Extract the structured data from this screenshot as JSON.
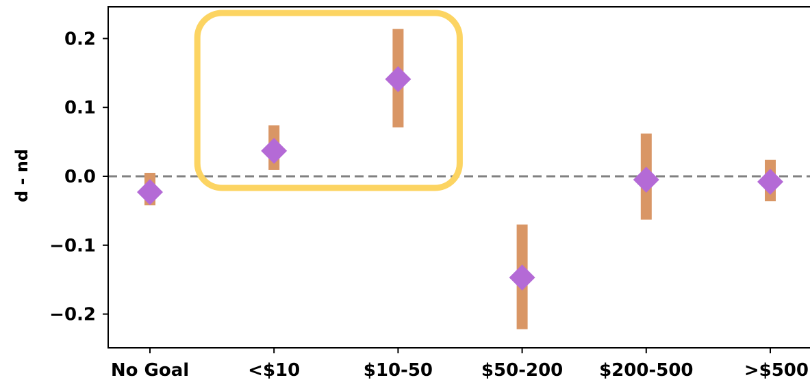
{
  "chart_data": {
    "type": "scatter",
    "title": "",
    "xlabel": "",
    "ylabel": "d - nd",
    "categories": [
      "No Goal",
      "<$10",
      "$10-50",
      "$50-200",
      "$200-500",
      ">$500"
    ],
    "y_ticks": [
      {
        "value": 0.2,
        "label": "0.2"
      },
      {
        "value": 0.1,
        "label": "0.1"
      },
      {
        "value": 0.0,
        "label": "0.0"
      },
      {
        "value": -0.1,
        "label": "−0.1"
      },
      {
        "value": -0.2,
        "label": "−0.2"
      }
    ],
    "ylim": [
      -0.249,
      0.246
    ],
    "reference_line": 0,
    "series": [
      {
        "values": [
          -0.023,
          0.037,
          0.141,
          -0.147,
          -0.005,
          -0.008
        ],
        "error_low": [
          -0.042,
          0.009,
          0.071,
          -0.222,
          -0.063,
          -0.036
        ],
        "error_high": [
          0.005,
          0.074,
          0.214,
          -0.07,
          0.062,
          0.024
        ]
      }
    ],
    "highlight_categories": [
      "<$10",
      "$10-50"
    ],
    "grid": false,
    "colors": {
      "marker": "#b46ad6",
      "error_bar": "#d99665",
      "reference_line": "#808080",
      "highlight_box": "#fcd462",
      "axes": "#000000"
    }
  }
}
